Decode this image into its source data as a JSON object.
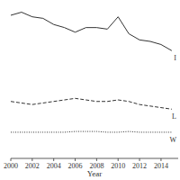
{
  "chart_data": {
    "type": "line",
    "x_label": "Year",
    "x": [
      2000,
      2001,
      2002,
      2003,
      2004,
      2005,
      2006,
      2007,
      2008,
      2009,
      2010,
      2011,
      2012,
      2013,
      2014,
      2015
    ],
    "series": [
      {
        "name": "I",
        "color": "#333333",
        "line_style": "solid",
        "values": [
          93,
          95,
          92,
          91,
          87,
          85,
          82,
          85,
          85,
          84,
          92,
          81,
          77,
          76,
          74,
          70
        ]
      },
      {
        "name": "L",
        "color": "#333333",
        "line_style": "dashed",
        "values": [
          37,
          36,
          35,
          36,
          37,
          38,
          39,
          38,
          37,
          37,
          38,
          37,
          35,
          34,
          33,
          32
        ]
      },
      {
        "name": "W",
        "color": "#333333",
        "line_style": "dotted",
        "values": [
          17,
          17,
          17,
          17,
          17,
          17,
          17.5,
          17.5,
          17.5,
          17,
          17,
          17.5,
          17,
          17,
          17,
          17
        ]
      }
    ],
    "xlim": [
      2000,
      2015.6
    ],
    "ylim": [
      0,
      100
    ],
    "xticks": [
      2000,
      2002,
      2004,
      2006,
      2008,
      2010,
      2012,
      2014
    ],
    "grid": false,
    "tick_labels": "x"
  }
}
